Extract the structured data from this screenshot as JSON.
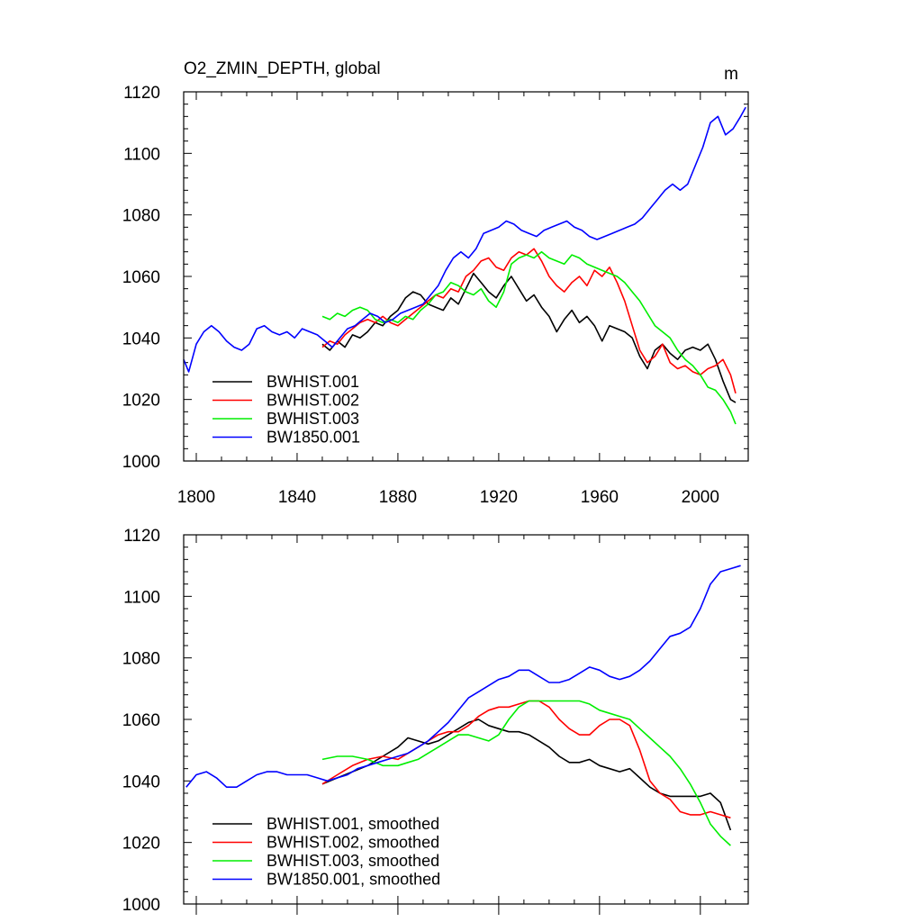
{
  "chart_data": [
    {
      "type": "line",
      "title": "O2_ZMIN_DEPTH, global",
      "units": "m",
      "xlim": [
        1795,
        2019
      ],
      "ylim": [
        1000,
        1120
      ],
      "x_ticks": [
        1800,
        1840,
        1880,
        1920,
        1960,
        2000
      ],
      "y_ticks": [
        1000,
        1020,
        1040,
        1060,
        1080,
        1100,
        1120
      ],
      "legend_position": "bottom-left",
      "series": [
        {
          "name": "BWHIST.001",
          "color": "#000000",
          "x": [
            1850,
            1853,
            1856,
            1859,
            1862,
            1865,
            1868,
            1871,
            1874,
            1877,
            1880,
            1883,
            1886,
            1889,
            1892,
            1895,
            1898,
            1901,
            1904,
            1907,
            1910,
            1913,
            1916,
            1919,
            1922,
            1925,
            1928,
            1931,
            1934,
            1937,
            1940,
            1943,
            1946,
            1949,
            1952,
            1955,
            1958,
            1961,
            1964,
            1967,
            1970,
            1973,
            1976,
            1979,
            1982,
            1985,
            1988,
            1991,
            1994,
            1997,
            2000,
            2003,
            2006,
            2009,
            2012,
            2014
          ],
          "y": [
            1038,
            1036,
            1039,
            1037,
            1041,
            1040,
            1042,
            1045,
            1044,
            1047,
            1049,
            1053,
            1055,
            1054,
            1051,
            1050,
            1049,
            1053,
            1051,
            1056,
            1061,
            1058,
            1055,
            1053,
            1057,
            1060,
            1056,
            1052,
            1054,
            1050,
            1047,
            1042,
            1046,
            1049,
            1045,
            1047,
            1044,
            1039,
            1044,
            1043,
            1042,
            1040,
            1034,
            1030,
            1036,
            1038,
            1035,
            1033,
            1036,
            1037,
            1036,
            1038,
            1033,
            1026,
            1020,
            1019
          ]
        },
        {
          "name": "BWHIST.002",
          "color": "#ff0000",
          "x": [
            1850,
            1853,
            1856,
            1859,
            1862,
            1865,
            1868,
            1871,
            1874,
            1877,
            1880,
            1883,
            1886,
            1889,
            1892,
            1895,
            1898,
            1901,
            1904,
            1907,
            1910,
            1913,
            1916,
            1919,
            1922,
            1925,
            1928,
            1931,
            1934,
            1937,
            1940,
            1943,
            1946,
            1949,
            1952,
            1955,
            1958,
            1961,
            1964,
            1967,
            1970,
            1973,
            1976,
            1979,
            1982,
            1985,
            1988,
            1991,
            1994,
            1997,
            2000,
            2003,
            2006,
            2009,
            2012,
            2014
          ],
          "y": [
            1037,
            1039,
            1038,
            1041,
            1043,
            1045,
            1046,
            1045,
            1047,
            1045,
            1044,
            1046,
            1048,
            1050,
            1052,
            1054,
            1053,
            1056,
            1055,
            1060,
            1062,
            1065,
            1066,
            1063,
            1062,
            1066,
            1068,
            1067,
            1069,
            1065,
            1060,
            1057,
            1055,
            1058,
            1060,
            1057,
            1062,
            1060,
            1063,
            1058,
            1052,
            1044,
            1036,
            1032,
            1034,
            1038,
            1032,
            1030,
            1031,
            1029,
            1028,
            1030,
            1031,
            1033,
            1028,
            1022
          ]
        },
        {
          "name": "BWHIST.003",
          "color": "#00ee00",
          "x": [
            1850,
            1853,
            1856,
            1859,
            1862,
            1865,
            1868,
            1871,
            1874,
            1877,
            1880,
            1883,
            1886,
            1889,
            1892,
            1895,
            1898,
            1901,
            1904,
            1907,
            1910,
            1913,
            1916,
            1919,
            1922,
            1925,
            1928,
            1931,
            1934,
            1937,
            1940,
            1943,
            1946,
            1949,
            1952,
            1955,
            1958,
            1961,
            1964,
            1967,
            1970,
            1973,
            1976,
            1979,
            1982,
            1985,
            1988,
            1991,
            1994,
            1997,
            2000,
            2003,
            2006,
            2009,
            2012,
            2014
          ],
          "y": [
            1047,
            1046,
            1048,
            1047,
            1049,
            1050,
            1049,
            1046,
            1045,
            1046,
            1045,
            1047,
            1046,
            1049,
            1051,
            1054,
            1055,
            1058,
            1057,
            1055,
            1054,
            1056,
            1052,
            1050,
            1055,
            1064,
            1066,
            1067,
            1066,
            1068,
            1066,
            1065,
            1064,
            1067,
            1066,
            1064,
            1063,
            1062,
            1061,
            1060,
            1058,
            1055,
            1052,
            1048,
            1044,
            1042,
            1040,
            1036,
            1033,
            1031,
            1028,
            1024,
            1023,
            1020,
            1016,
            1012
          ]
        },
        {
          "name": "BW1850.001",
          "color": "#0000ff",
          "x": [
            1795,
            1797,
            1800,
            1803,
            1806,
            1809,
            1812,
            1815,
            1818,
            1821,
            1824,
            1827,
            1830,
            1833,
            1836,
            1839,
            1842,
            1845,
            1848,
            1851,
            1854,
            1857,
            1860,
            1863,
            1866,
            1869,
            1872,
            1875,
            1878,
            1881,
            1884,
            1887,
            1890,
            1893,
            1896,
            1899,
            1902,
            1905,
            1908,
            1911,
            1914,
            1917,
            1920,
            1923,
            1926,
            1929,
            1932,
            1935,
            1938,
            1941,
            1944,
            1947,
            1950,
            1953,
            1956,
            1959,
            1962,
            1965,
            1968,
            1971,
            1974,
            1977,
            1980,
            1983,
            1986,
            1989,
            1992,
            1995,
            1998,
            2001,
            2004,
            2007,
            2010,
            2013,
            2016,
            2018
          ],
          "y": [
            1033,
            1029,
            1038,
            1042,
            1044,
            1042,
            1039,
            1037,
            1036,
            1038,
            1043,
            1044,
            1042,
            1041,
            1042,
            1040,
            1043,
            1042,
            1041,
            1039,
            1037,
            1040,
            1043,
            1044,
            1046,
            1048,
            1047,
            1045,
            1046,
            1048,
            1049,
            1050,
            1051,
            1054,
            1057,
            1062,
            1066,
            1068,
            1066,
            1069,
            1074,
            1075,
            1076,
            1078,
            1077,
            1075,
            1074,
            1073,
            1075,
            1076,
            1077,
            1078,
            1076,
            1075,
            1073,
            1072,
            1073,
            1074,
            1075,
            1076,
            1077,
            1079,
            1082,
            1085,
            1088,
            1090,
            1088,
            1090,
            1096,
            1102,
            1110,
            1112,
            1106,
            1108,
            1112,
            1115
          ]
        }
      ]
    },
    {
      "type": "line",
      "title": "",
      "xlim": [
        1795,
        2019
      ],
      "ylim": [
        1000,
        1120
      ],
      "y_ticks": [
        1000,
        1020,
        1040,
        1060,
        1080,
        1100,
        1120
      ],
      "legend_position": "bottom-left",
      "series": [
        {
          "name": "BWHIST.001, smoothed",
          "color": "#000000",
          "x": [
            1850,
            1856,
            1862,
            1868,
            1874,
            1880,
            1884,
            1888,
            1892,
            1896,
            1900,
            1904,
            1908,
            1912,
            1916,
            1920,
            1924,
            1928,
            1932,
            1936,
            1940,
            1944,
            1948,
            1952,
            1956,
            1960,
            1964,
            1968,
            1972,
            1976,
            1980,
            1984,
            1988,
            1992,
            1996,
            2000,
            2004,
            2008,
            2012
          ],
          "y": [
            1039,
            1041,
            1043,
            1045,
            1048,
            1051,
            1054,
            1053,
            1052,
            1053,
            1055,
            1057,
            1059,
            1060,
            1058,
            1057,
            1056,
            1056,
            1055,
            1053,
            1051,
            1048,
            1046,
            1046,
            1047,
            1045,
            1044,
            1043,
            1044,
            1041,
            1038,
            1036,
            1035,
            1035,
            1035,
            1035,
            1036,
            1033,
            1024
          ]
        },
        {
          "name": "BWHIST.002, smoothed",
          "color": "#ff0000",
          "x": [
            1850,
            1856,
            1862,
            1868,
            1874,
            1880,
            1884,
            1888,
            1892,
            1896,
            1900,
            1904,
            1908,
            1912,
            1916,
            1920,
            1924,
            1928,
            1932,
            1936,
            1940,
            1944,
            1948,
            1952,
            1956,
            1960,
            1964,
            1968,
            1972,
            1976,
            1980,
            1984,
            1988,
            1992,
            1996,
            2000,
            2004,
            2008,
            2012
          ],
          "y": [
            1039,
            1042,
            1045,
            1047,
            1048,
            1047,
            1049,
            1051,
            1053,
            1055,
            1056,
            1056,
            1058,
            1061,
            1063,
            1064,
            1064,
            1065,
            1066,
            1066,
            1064,
            1060,
            1057,
            1055,
            1055,
            1058,
            1060,
            1060,
            1058,
            1050,
            1040,
            1036,
            1034,
            1030,
            1029,
            1029,
            1030,
            1029,
            1028
          ]
        },
        {
          "name": "BWHIST.003, smoothed",
          "color": "#00ee00",
          "x": [
            1850,
            1856,
            1862,
            1868,
            1874,
            1880,
            1884,
            1888,
            1892,
            1896,
            1900,
            1904,
            1908,
            1912,
            1916,
            1920,
            1924,
            1928,
            1932,
            1936,
            1940,
            1944,
            1948,
            1952,
            1956,
            1960,
            1964,
            1968,
            1972,
            1976,
            1980,
            1984,
            1988,
            1992,
            1996,
            2000,
            2004,
            2008,
            2012
          ],
          "y": [
            1047,
            1048,
            1048,
            1047,
            1045,
            1045,
            1046,
            1047,
            1049,
            1051,
            1053,
            1055,
            1055,
            1054,
            1053,
            1055,
            1060,
            1064,
            1066,
            1066,
            1066,
            1066,
            1066,
            1066,
            1065,
            1063,
            1062,
            1061,
            1060,
            1057,
            1054,
            1051,
            1048,
            1044,
            1039,
            1033,
            1026,
            1022,
            1019
          ]
        },
        {
          "name": "BW1850.001, smoothed",
          "color": "#0000ff",
          "x": [
            1796,
            1800,
            1804,
            1808,
            1812,
            1816,
            1820,
            1824,
            1828,
            1832,
            1836,
            1840,
            1844,
            1848,
            1852,
            1856,
            1860,
            1864,
            1868,
            1872,
            1876,
            1880,
            1884,
            1888,
            1892,
            1896,
            1900,
            1904,
            1908,
            1912,
            1916,
            1920,
            1924,
            1928,
            1932,
            1936,
            1940,
            1944,
            1948,
            1952,
            1956,
            1960,
            1964,
            1968,
            1972,
            1976,
            1980,
            1984,
            1988,
            1992,
            1996,
            2000,
            2004,
            2008,
            2012,
            2016
          ],
          "y": [
            1038,
            1042,
            1043,
            1041,
            1038,
            1038,
            1040,
            1042,
            1043,
            1043,
            1042,
            1042,
            1042,
            1041,
            1040,
            1041,
            1042,
            1044,
            1045,
            1046,
            1047,
            1048,
            1049,
            1051,
            1053,
            1056,
            1059,
            1063,
            1067,
            1069,
            1071,
            1073,
            1074,
            1076,
            1076,
            1074,
            1072,
            1072,
            1073,
            1075,
            1077,
            1076,
            1074,
            1073,
            1074,
            1076,
            1079,
            1083,
            1087,
            1088,
            1090,
            1096,
            1104,
            1108,
            1109,
            1110
          ]
        }
      ]
    }
  ]
}
